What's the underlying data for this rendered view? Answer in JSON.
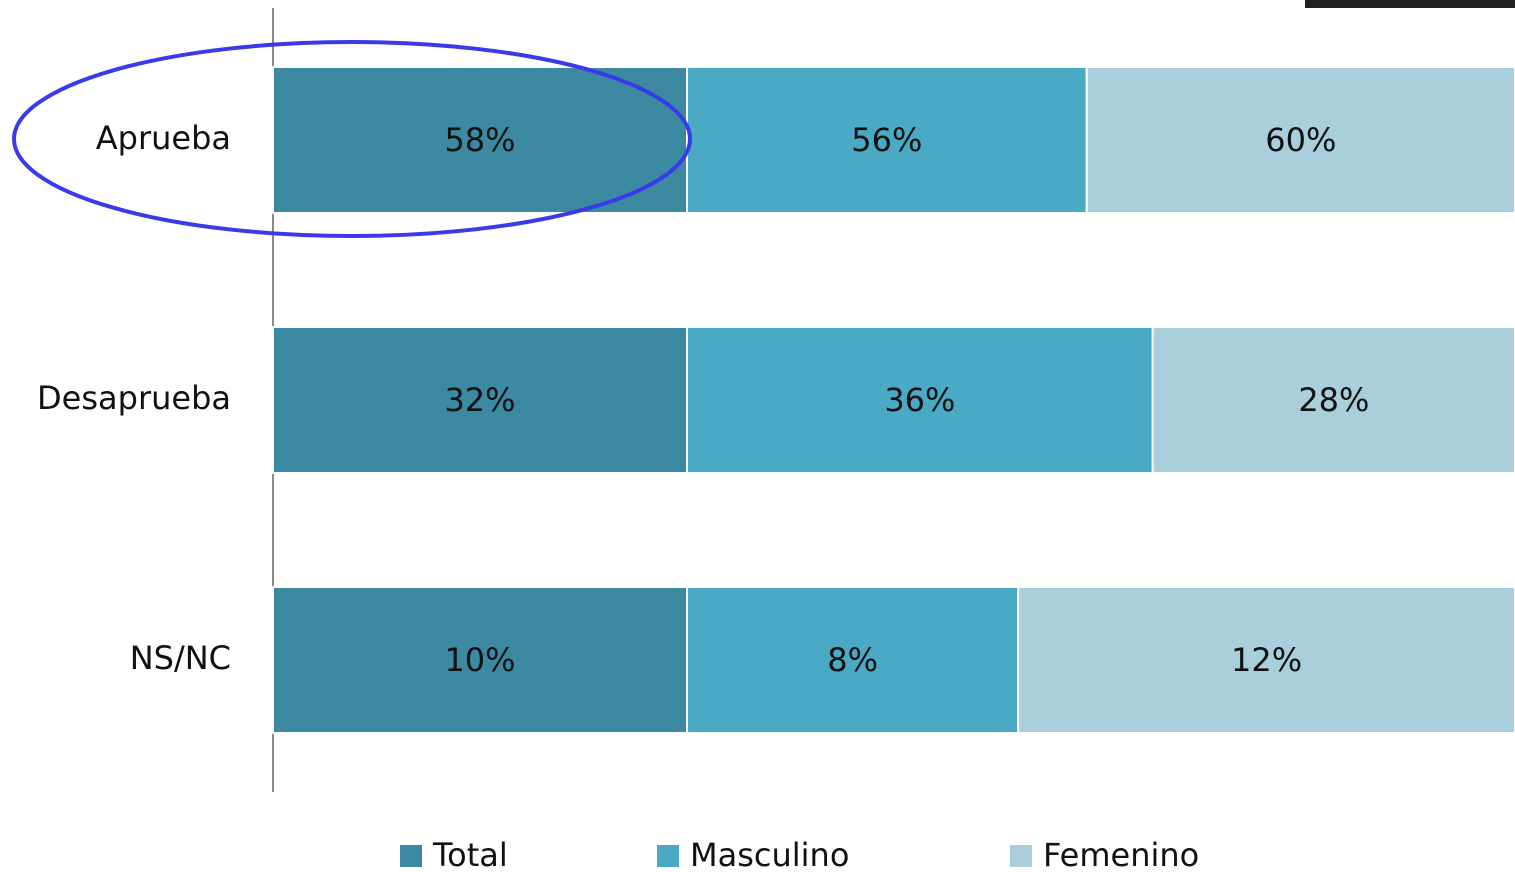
{
  "chart_data": {
    "type": "bar",
    "orientation": "horizontal",
    "stacking": "percent",
    "categories": [
      "Aprueba",
      "Desaprueba",
      "NS/NC"
    ],
    "series": [
      {
        "name": "Total",
        "color": "#3b8aa1",
        "values": [
          58,
          32,
          10
        ],
        "value_labels": [
          "58%",
          "32%",
          "10%"
        ]
      },
      {
        "name": "Masculino",
        "color": "#4aaac6",
        "values": [
          56,
          36,
          8
        ],
        "value_labels": [
          "56%",
          "36%",
          "8%"
        ]
      },
      {
        "name": "Femenino",
        "color": "#a9cfdd",
        "values": [
          60,
          28,
          12
        ],
        "value_labels": [
          "60%",
          "28%",
          "12%"
        ]
      }
    ],
    "legend": "bottom"
  }
}
